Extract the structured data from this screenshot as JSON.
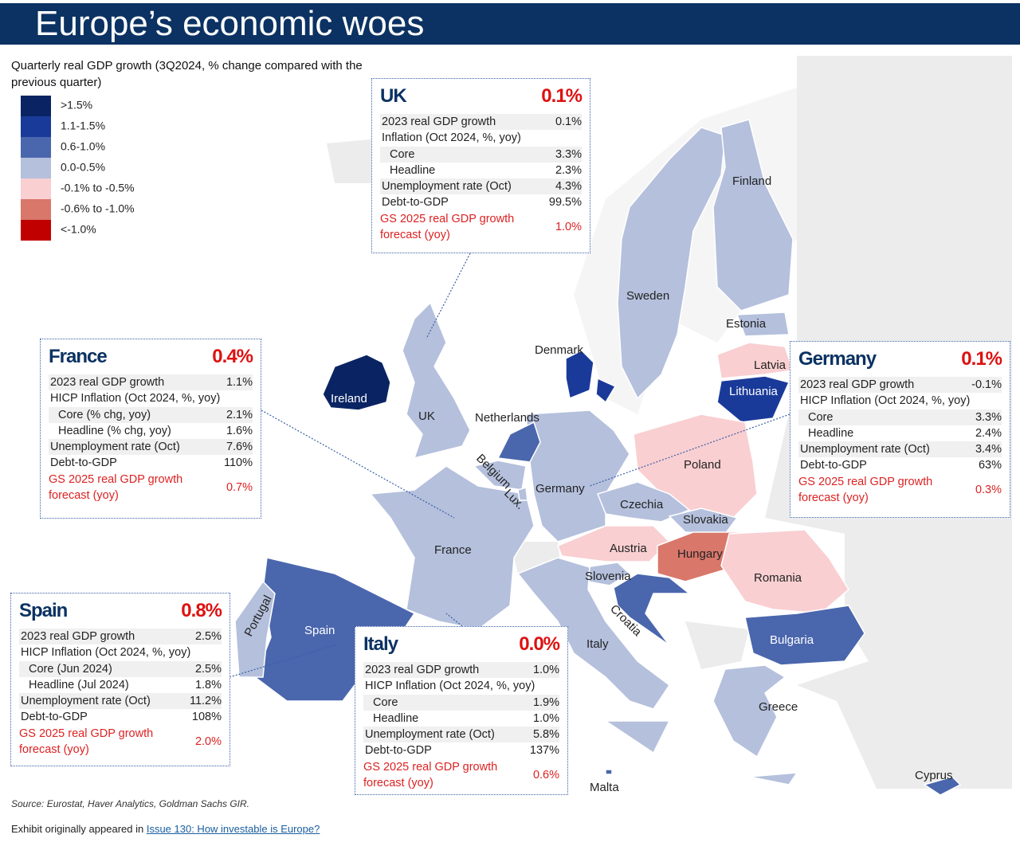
{
  "header": {
    "title": "Europe’s economic woes",
    "subtitle": "Quarterly real GDP growth (3Q2024, % change compared with the previous quarter)"
  },
  "legend": [
    {
      "label": ">1.5%",
      "color": "#0a2463"
    },
    {
      "label": "1.1-1.5%",
      "color": "#1a3a9a"
    },
    {
      "label": "0.6-1.0%",
      "color": "#4a66ad"
    },
    {
      "label": "0.0-0.5%",
      "color": "#b4c0dc"
    },
    {
      "label": "-0.1% to -0.5%",
      "color": "#f9cfd1"
    },
    {
      "label": "-0.6% to -1.0%",
      "color": "#d9776b"
    },
    {
      "label": "<-1.0%",
      "color": "#c00000"
    }
  ],
  "countries": [
    {
      "name": "Ireland",
      "color": "#0a2463"
    },
    {
      "name": "UK",
      "color": "#b4c0dc"
    },
    {
      "name": "France",
      "color": "#b4c0dc"
    },
    {
      "name": "Spain",
      "color": "#4a66ad"
    },
    {
      "name": "Portugal",
      "color": "#b4c0dc"
    },
    {
      "name": "Germany",
      "color": "#b4c0dc"
    },
    {
      "name": "Netherlands",
      "color": "#4a66ad"
    },
    {
      "name": "Belgium",
      "color": "#b4c0dc"
    },
    {
      "name": "Lux.",
      "color": "#b4c0dc"
    },
    {
      "name": "Denmark",
      "color": "#1a3a9a"
    },
    {
      "name": "Sweden",
      "color": "#b4c0dc"
    },
    {
      "name": "Finland",
      "color": "#b4c0dc"
    },
    {
      "name": "Estonia",
      "color": "#b4c0dc"
    },
    {
      "name": "Latvia",
      "color": "#f9cfd1"
    },
    {
      "name": "Lithuania",
      "color": "#1a3a9a"
    },
    {
      "name": "Poland",
      "color": "#f9cfd1"
    },
    {
      "name": "Czechia",
      "color": "#b4c0dc"
    },
    {
      "name": "Slovakia",
      "color": "#b4c0dc"
    },
    {
      "name": "Austria",
      "color": "#f9cfd1"
    },
    {
      "name": "Hungary",
      "color": "#d9776b"
    },
    {
      "name": "Romania",
      "color": "#f9cfd1"
    },
    {
      "name": "Bulgaria",
      "color": "#4a66ad"
    },
    {
      "name": "Slovenia",
      "color": "#b4c0dc"
    },
    {
      "name": "Croatia",
      "color": "#4a66ad"
    },
    {
      "name": "Italy",
      "color": "#b4c0dc"
    },
    {
      "name": "Greece",
      "color": "#b4c0dc"
    },
    {
      "name": "Cyprus",
      "color": "#4a66ad"
    },
    {
      "name": "Malta",
      "color": "#4a66ad"
    }
  ],
  "boxes": [
    {
      "country": "UK",
      "growth": "0.1%",
      "rows": [
        [
          "2023 real GDP growth",
          "0.1%"
        ],
        [
          "Inflation (Oct 2024, %, yoy)",
          ""
        ],
        [
          "Core",
          "3.3%"
        ],
        [
          "Headline",
          "2.3%"
        ],
        [
          "Unemployment rate (Oct)",
          "4.3%"
        ],
        [
          "Debt-to-GDP",
          "99.5%"
        ]
      ],
      "forecast": [
        "GS 2025 real GDP growth forecast (yoy)",
        "1.0%"
      ]
    },
    {
      "country": "France",
      "growth": "0.4%",
      "rows": [
        [
          "2023 real GDP growth",
          "1.1%"
        ],
        [
          "HICP Inflation (Oct 2024, %, yoy)",
          ""
        ],
        [
          "Core (% chg, yoy)",
          "2.1%"
        ],
        [
          "Headline (% chg, yoy)",
          "1.6%"
        ],
        [
          "Unemployment rate (Oct)",
          "7.6%"
        ],
        [
          "Debt-to-GDP",
          "110%"
        ]
      ],
      "forecast": [
        "GS 2025 real GDP growth forecast (yoy)",
        "0.7%"
      ]
    },
    {
      "country": "Germany",
      "growth": "0.1%",
      "rows": [
        [
          "2023 real GDP growth",
          "-0.1%"
        ],
        [
          "HICP Inflation (Oct 2024, %, yoy)",
          ""
        ],
        [
          "Core",
          "3.3%"
        ],
        [
          "Headline",
          "2.4%"
        ],
        [
          "Unemployment rate (Oct)",
          "3.4%"
        ],
        [
          "Debt-to-GDP",
          "63%"
        ]
      ],
      "forecast": [
        "GS 2025 real GDP growth forecast (yoy)",
        "0.3%"
      ]
    },
    {
      "country": "Spain",
      "growth": "0.8%",
      "rows": [
        [
          "2023 real GDP growth",
          "2.5%"
        ],
        [
          "HICP Inflation (Oct 2024, %, yoy)",
          ""
        ],
        [
          "Core (Jun 2024)",
          "2.5%"
        ],
        [
          "Headline (Jul 2024)",
          "1.8%"
        ],
        [
          "Unemployment rate (Oct)",
          "11.2%"
        ],
        [
          "Debt-to-GDP",
          "108%"
        ]
      ],
      "forecast": [
        "GS 2025 real GDP growth forecast (yoy)",
        "2.0%"
      ]
    },
    {
      "country": "Italy",
      "growth": "0.0%",
      "rows": [
        [
          "2023 real GDP growth",
          "1.0%"
        ],
        [
          "HICP Inflation (Oct 2024, %, yoy)",
          ""
        ],
        [
          "Core",
          "1.9%"
        ],
        [
          "Headline",
          "1.0%"
        ],
        [
          "Unemployment rate (Oct)",
          "5.8%"
        ],
        [
          "Debt-to-GDP",
          "137%"
        ]
      ],
      "forecast": [
        "GS 2025 real GDP growth forecast (yoy)",
        "0.6%"
      ]
    }
  ],
  "footer": {
    "source": "Source: Eurostat, Haver Analytics, Goldman Sachs GIR.",
    "exhibit": "Exhibit originally appeared in ",
    "link": "Issue 130: How investable is Europe?"
  }
}
